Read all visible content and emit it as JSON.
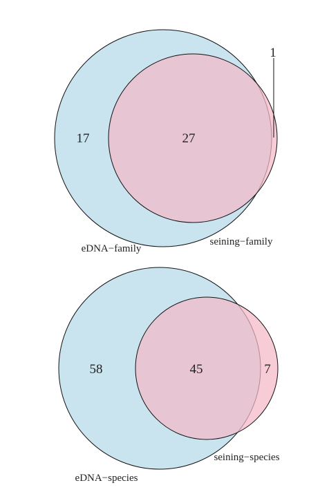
{
  "diagrams": [
    {
      "set_a": "eDNA−family",
      "set_b": "seining−family",
      "only_a": "17",
      "both": "27",
      "only_b": "1"
    },
    {
      "set_a": "eDNA−species",
      "set_b": "seining−species",
      "only_a": "58",
      "both": "45",
      "only_b": "7"
    }
  ],
  "colors": {
    "edna_fill": "#c9e4ee",
    "seining_fill": "#f4b9c7",
    "outline": "#111111"
  }
}
